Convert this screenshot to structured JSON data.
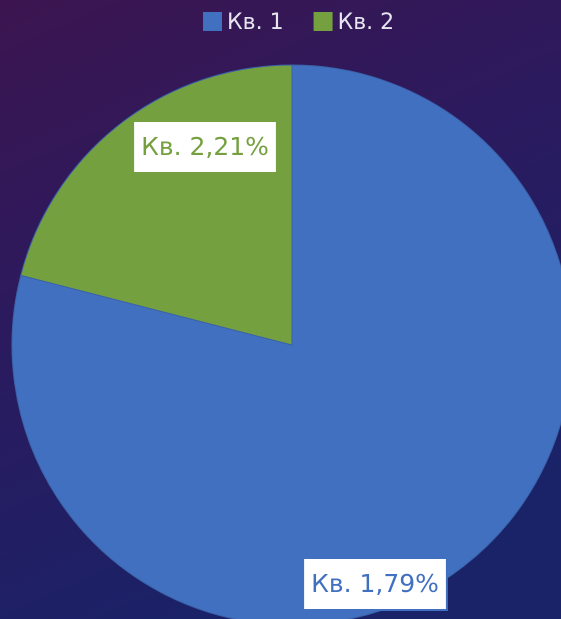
{
  "chart_data": {
    "type": "pie",
    "categories": [
      "Кв. 1",
      "Кв. 2"
    ],
    "values": [
      79,
      21
    ],
    "value_labels": [
      "Кв. 1,79%",
      "Кв. 2,21%"
    ],
    "colors": [
      "#4170c0",
      "#75a040"
    ],
    "legend": "top"
  }
}
